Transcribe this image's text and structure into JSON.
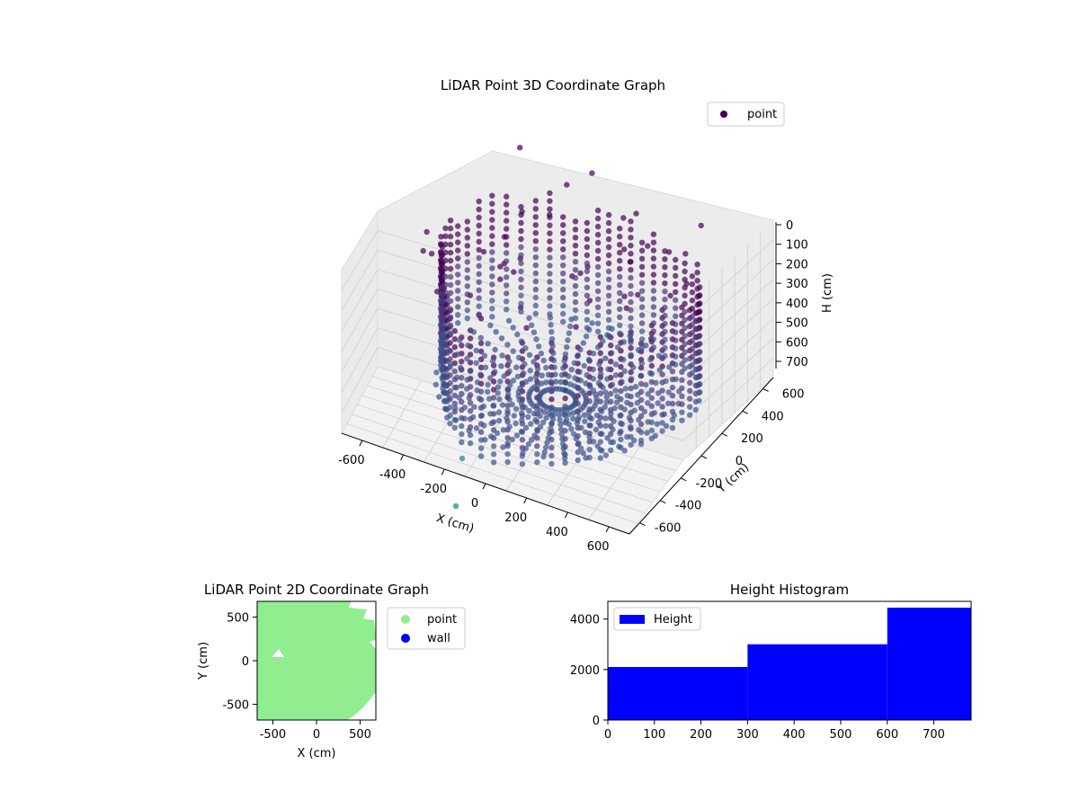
{
  "colors": {
    "point_dark": "#440154",
    "point_mid": "#3b528b",
    "point_light": "#21918c",
    "point2d": "#90ee90",
    "wall": "#0000ff",
    "hist_bar": "#0000ff"
  },
  "chart_data": [
    {
      "id": "lidar-3d",
      "type": "scatter",
      "projection": "3d",
      "title": "LiDAR Point 3D Coordinate Graph",
      "xlabel": "X (cm)",
      "ylabel": "Y (cm)",
      "zlabel": "H (cm)",
      "xlim": [
        -700,
        700
      ],
      "ylim": [
        -700,
        700
      ],
      "zlim": [
        0,
        780
      ],
      "z_inverted": true,
      "x_ticks": [
        "-600",
        "-400",
        "-200",
        "0",
        "200",
        "400",
        "600"
      ],
      "y_ticks": [
        "-600",
        "-400",
        "-200",
        "0",
        "200",
        "400",
        "600"
      ],
      "z_ticks": [
        "0",
        "100",
        "200",
        "300",
        "400",
        "500",
        "600",
        "700"
      ],
      "legend": {
        "labels": [
          "point"
        ],
        "position": "top-right"
      },
      "colormap": "viridis",
      "series": [
        {
          "name": "point",
          "note_values": "dense point cloud of room scan"
        }
      ]
    },
    {
      "id": "lidar-2d",
      "type": "scatter",
      "title": "LiDAR Point 2D Coordinate Graph",
      "xlabel": "X (cm)",
      "ylabel": "Y (cm)",
      "xlim": [
        -680,
        680
      ],
      "ylim": [
        -680,
        680
      ],
      "x_ticks": [
        "-500",
        "0",
        "500"
      ],
      "y_ticks": [
        "500",
        "0",
        "-500"
      ],
      "legend": {
        "labels": [
          "point",
          "wall"
        ],
        "position": "outside-right"
      },
      "series": [
        {
          "name": "point"
        },
        {
          "name": "wall"
        }
      ]
    },
    {
      "id": "height-hist",
      "type": "bar",
      "title": "Height Histogram",
      "xlim": [
        0,
        780
      ],
      "ylim": [
        0,
        4700
      ],
      "x_ticks": [
        "0",
        "100",
        "200",
        "300",
        "400",
        "500",
        "600",
        "700"
      ],
      "y_ticks": [
        "0",
        "2000",
        "4000"
      ],
      "legend": {
        "labels": [
          "Height"
        ],
        "position": "top-left"
      },
      "bins": [
        {
          "start": 0,
          "end": 300,
          "count": 2100
        },
        {
          "start": 300,
          "end": 600,
          "count": 3000
        },
        {
          "start": 600,
          "end": 780,
          "count": 4450
        }
      ]
    }
  ]
}
